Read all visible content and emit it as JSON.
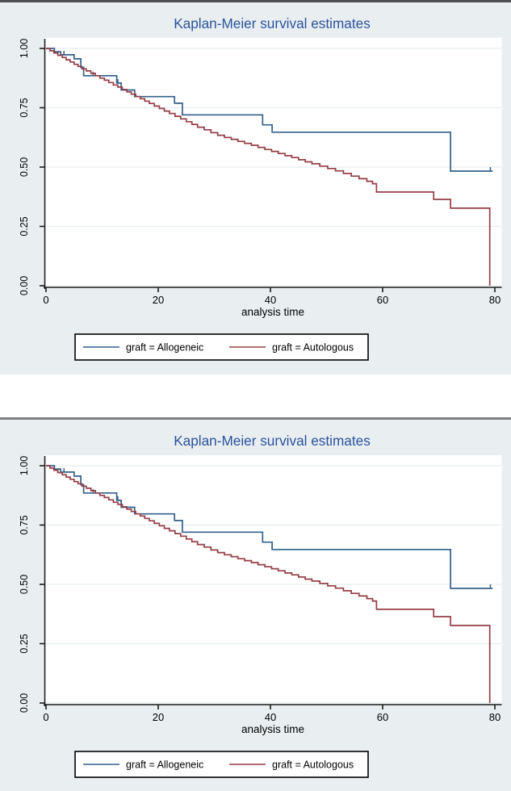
{
  "style": {
    "panel_background": "#e9eff1",
    "plot_background": "#ffffff",
    "grid_color": "#e6edef",
    "axis_color": "#1a1a1a",
    "text_color": "#000000",
    "title_color": "#2b529e",
    "legend_border": "#000000",
    "legend_background": "#ffffff",
    "top_bar_color": "#4e4f52",
    "divider_color": "#7d7f81",
    "allogeneic_color": "#33608b",
    "autologous_color": "#963e46"
  },
  "chart_data": [
    {
      "type": "line",
      "subtype": "kaplan-meier-step",
      "title": "Kaplan-Meier survival estimates",
      "xlabel": "analysis time",
      "ylabel": "",
      "xlim": [
        0,
        80
      ],
      "ylim": [
        0.0,
        1.0
      ],
      "xticks": [
        0,
        20,
        40,
        60,
        80
      ],
      "ytick_labels": [
        "0.00",
        "0.25",
        "0.50",
        "0.75",
        "1.00"
      ],
      "ytick_values": [
        0,
        0.25,
        0.5,
        0.75,
        1
      ],
      "grid": "horizontal",
      "legend_position": "bottom",
      "series": [
        {
          "name": "graft = Allogeneic",
          "color": "#33608b",
          "end_time": 79.6,
          "censor_ticks": [
            [
              3.2,
              0.973
            ],
            [
              8.4,
              0.885
            ],
            [
              12.8,
              0.854
            ],
            [
              79.2,
              0.483
            ]
          ],
          "points": [
            [
              0,
              1.0
            ],
            [
              1.5,
              0.986
            ],
            [
              2.6,
              0.973
            ],
            [
              5.0,
              0.956
            ],
            [
              6.2,
              0.92
            ],
            [
              6.7,
              0.885
            ],
            [
              12.6,
              0.854
            ],
            [
              13.4,
              0.825
            ],
            [
              15.8,
              0.797
            ],
            [
              22.9,
              0.769
            ],
            [
              24.3,
              0.72
            ],
            [
              38.6,
              0.678
            ],
            [
              40.3,
              0.647
            ],
            [
              72.1,
              0.483
            ]
          ]
        },
        {
          "name": "graft = Autologous",
          "color": "#963e46",
          "end_time": 79.1,
          "censor_ticks": [],
          "points": [
            [
              0,
              1.0
            ],
            [
              0.7,
              0.99
            ],
            [
              1.4,
              0.981
            ],
            [
              2.1,
              0.971
            ],
            [
              2.9,
              0.962
            ],
            [
              3.6,
              0.952
            ],
            [
              4.3,
              0.943
            ],
            [
              5.0,
              0.933
            ],
            [
              5.7,
              0.924
            ],
            [
              6.4,
              0.914
            ],
            [
              7.2,
              0.905
            ],
            [
              8.0,
              0.895
            ],
            [
              8.8,
              0.885
            ],
            [
              9.6,
              0.875
            ],
            [
              10.4,
              0.866
            ],
            [
              11.2,
              0.856
            ],
            [
              12.0,
              0.846
            ],
            [
              12.8,
              0.837
            ],
            [
              13.6,
              0.827
            ],
            [
              14.4,
              0.817
            ],
            [
              15.2,
              0.807
            ],
            [
              16.0,
              0.797
            ],
            [
              16.8,
              0.788
            ],
            [
              17.6,
              0.778
            ],
            [
              18.4,
              0.768
            ],
            [
              19.3,
              0.757
            ],
            [
              20.2,
              0.747
            ],
            [
              21.1,
              0.736
            ],
            [
              22.0,
              0.726
            ],
            [
              23.0,
              0.714
            ],
            [
              24.0,
              0.703
            ],
            [
              25.0,
              0.691
            ],
            [
              26.0,
              0.68
            ],
            [
              27.0,
              0.668
            ],
            [
              28.2,
              0.657
            ],
            [
              29.4,
              0.645
            ],
            [
              30.6,
              0.634
            ],
            [
              31.8,
              0.625
            ],
            [
              33.0,
              0.617
            ],
            [
              34.2,
              0.608
            ],
            [
              35.4,
              0.6
            ],
            [
              36.6,
              0.592
            ],
            [
              37.8,
              0.583
            ],
            [
              39.0,
              0.574
            ],
            [
              40.2,
              0.566
            ],
            [
              41.4,
              0.557
            ],
            [
              42.6,
              0.548
            ],
            [
              43.8,
              0.54
            ],
            [
              45.0,
              0.531
            ],
            [
              46.2,
              0.522
            ],
            [
              47.4,
              0.514
            ],
            [
              48.8,
              0.504
            ],
            [
              50.2,
              0.494
            ],
            [
              51.6,
              0.484
            ],
            [
              53.0,
              0.473
            ],
            [
              54.4,
              0.462
            ],
            [
              55.8,
              0.451
            ],
            [
              57.2,
              0.44
            ],
            [
              58.2,
              0.43
            ],
            [
              58.9,
              0.395
            ],
            [
              69.1,
              0.364
            ],
            [
              72.1,
              0.327
            ],
            [
              79.1,
              0.0
            ]
          ]
        }
      ]
    },
    {
      "type": "line",
      "subtype": "kaplan-meier-step",
      "title": "Kaplan-Meier survival estimates",
      "xlabel": "analysis time",
      "ylabel": "",
      "xlim": [
        0,
        80
      ],
      "ylim": [
        0.0,
        1.0
      ],
      "xticks": [
        0,
        20,
        40,
        60,
        80
      ],
      "ytick_labels": [
        "0.00",
        "0.25",
        "0.50",
        "0.75",
        "1.00"
      ],
      "ytick_values": [
        0,
        0.25,
        0.5,
        0.75,
        1
      ],
      "grid": "horizontal",
      "legend_position": "bottom",
      "series": [
        {
          "name": "graft = Allogeneic",
          "color": "#33608b",
          "end_time": 79.6,
          "censor_ticks": [
            [
              3.2,
              0.973
            ],
            [
              8.4,
              0.885
            ],
            [
              12.8,
              0.854
            ],
            [
              79.2,
              0.483
            ]
          ],
          "points": [
            [
              0,
              1.0
            ],
            [
              1.5,
              0.986
            ],
            [
              2.6,
              0.973
            ],
            [
              5.0,
              0.956
            ],
            [
              6.2,
              0.92
            ],
            [
              6.7,
              0.885
            ],
            [
              12.6,
              0.854
            ],
            [
              13.4,
              0.825
            ],
            [
              15.8,
              0.797
            ],
            [
              22.9,
              0.769
            ],
            [
              24.3,
              0.72
            ],
            [
              38.6,
              0.678
            ],
            [
              40.3,
              0.647
            ],
            [
              72.1,
              0.483
            ]
          ]
        },
        {
          "name": "graft = Autologous",
          "color": "#963e46",
          "end_time": 79.1,
          "censor_ticks": [],
          "points": [
            [
              0,
              1.0
            ],
            [
              0.7,
              0.99
            ],
            [
              1.4,
              0.981
            ],
            [
              2.1,
              0.971
            ],
            [
              2.9,
              0.962
            ],
            [
              3.6,
              0.952
            ],
            [
              4.3,
              0.943
            ],
            [
              5.0,
              0.933
            ],
            [
              5.7,
              0.924
            ],
            [
              6.4,
              0.914
            ],
            [
              7.2,
              0.905
            ],
            [
              8.0,
              0.895
            ],
            [
              8.8,
              0.885
            ],
            [
              9.6,
              0.875
            ],
            [
              10.4,
              0.866
            ],
            [
              11.2,
              0.856
            ],
            [
              12.0,
              0.846
            ],
            [
              12.8,
              0.837
            ],
            [
              13.6,
              0.827
            ],
            [
              14.4,
              0.817
            ],
            [
              15.2,
              0.807
            ],
            [
              16.0,
              0.797
            ],
            [
              16.8,
              0.788
            ],
            [
              17.6,
              0.778
            ],
            [
              18.4,
              0.768
            ],
            [
              19.3,
              0.757
            ],
            [
              20.2,
              0.747
            ],
            [
              21.1,
              0.736
            ],
            [
              22.0,
              0.726
            ],
            [
              23.0,
              0.714
            ],
            [
              24.0,
              0.703
            ],
            [
              25.0,
              0.691
            ],
            [
              26.0,
              0.68
            ],
            [
              27.0,
              0.668
            ],
            [
              28.2,
              0.657
            ],
            [
              29.4,
              0.645
            ],
            [
              30.6,
              0.634
            ],
            [
              31.8,
              0.625
            ],
            [
              33.0,
              0.617
            ],
            [
              34.2,
              0.608
            ],
            [
              35.4,
              0.6
            ],
            [
              36.6,
              0.592
            ],
            [
              37.8,
              0.583
            ],
            [
              39.0,
              0.574
            ],
            [
              40.2,
              0.566
            ],
            [
              41.4,
              0.557
            ],
            [
              42.6,
              0.548
            ],
            [
              43.8,
              0.54
            ],
            [
              45.0,
              0.531
            ],
            [
              46.2,
              0.522
            ],
            [
              47.4,
              0.514
            ],
            [
              48.8,
              0.504
            ],
            [
              50.2,
              0.494
            ],
            [
              51.6,
              0.484
            ],
            [
              53.0,
              0.473
            ],
            [
              54.4,
              0.462
            ],
            [
              55.8,
              0.451
            ],
            [
              57.2,
              0.44
            ],
            [
              58.2,
              0.43
            ],
            [
              58.9,
              0.395
            ],
            [
              69.1,
              0.364
            ],
            [
              72.1,
              0.327
            ],
            [
              79.1,
              0.0
            ]
          ]
        }
      ]
    }
  ]
}
